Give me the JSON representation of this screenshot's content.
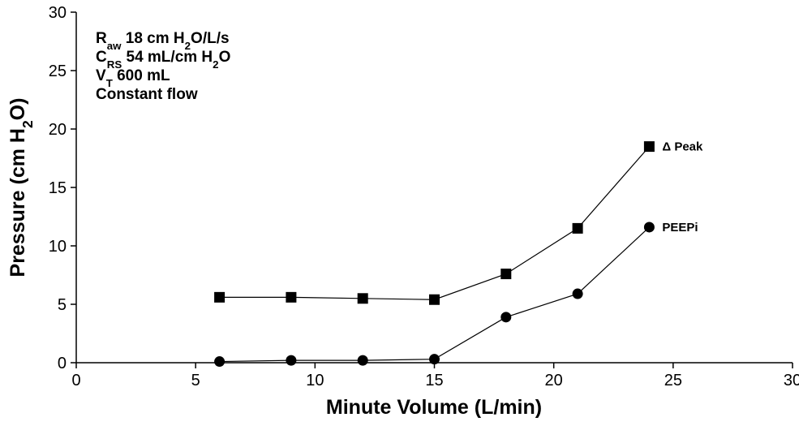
{
  "chart_data": {
    "type": "line",
    "x": [
      6,
      9,
      12,
      15,
      18,
      21,
      24
    ],
    "series": [
      {
        "name": "Δ Peak",
        "color": "#000000",
        "marker": "square",
        "values": [
          5.6,
          5.6,
          5.5,
          5.4,
          7.6,
          11.5,
          18.5
        ]
      },
      {
        "name": "PEEPi",
        "color": "#000000",
        "marker": "circle",
        "values": [
          0.1,
          0.2,
          0.2,
          0.3,
          3.9,
          5.9,
          11.6
        ]
      }
    ],
    "xlabel": "Minute Volume (L/min)",
    "ylabel": [
      {
        "text": "Pressure (cm H"
      },
      {
        "text": "2",
        "sub": true
      },
      {
        "text": "O)"
      }
    ],
    "annotations": [
      [
        {
          "text": "R"
        },
        {
          "text": "aw",
          "sub": true
        },
        {
          "text": " 18 cm H"
        },
        {
          "text": "2",
          "sub": true
        },
        {
          "text": "O/L/s"
        }
      ],
      [
        {
          "text": "C"
        },
        {
          "text": "RS",
          "sub": true
        },
        {
          "text": " 54 mL/cm H"
        },
        {
          "text": "2",
          "sub": true
        },
        {
          "text": "O"
        }
      ],
      [
        {
          "text": "V"
        },
        {
          "text": "T",
          "sub": true
        },
        {
          "text": " 600 mL"
        }
      ],
      [
        {
          "text": "Constant flow"
        }
      ]
    ],
    "xlim": [
      0,
      30
    ],
    "xticks": [
      0,
      5,
      10,
      15,
      20,
      25,
      30
    ],
    "ylim": [
      0,
      30
    ],
    "yticks": [
      0,
      5,
      10,
      15,
      20,
      25,
      30
    ],
    "grid": false
  }
}
